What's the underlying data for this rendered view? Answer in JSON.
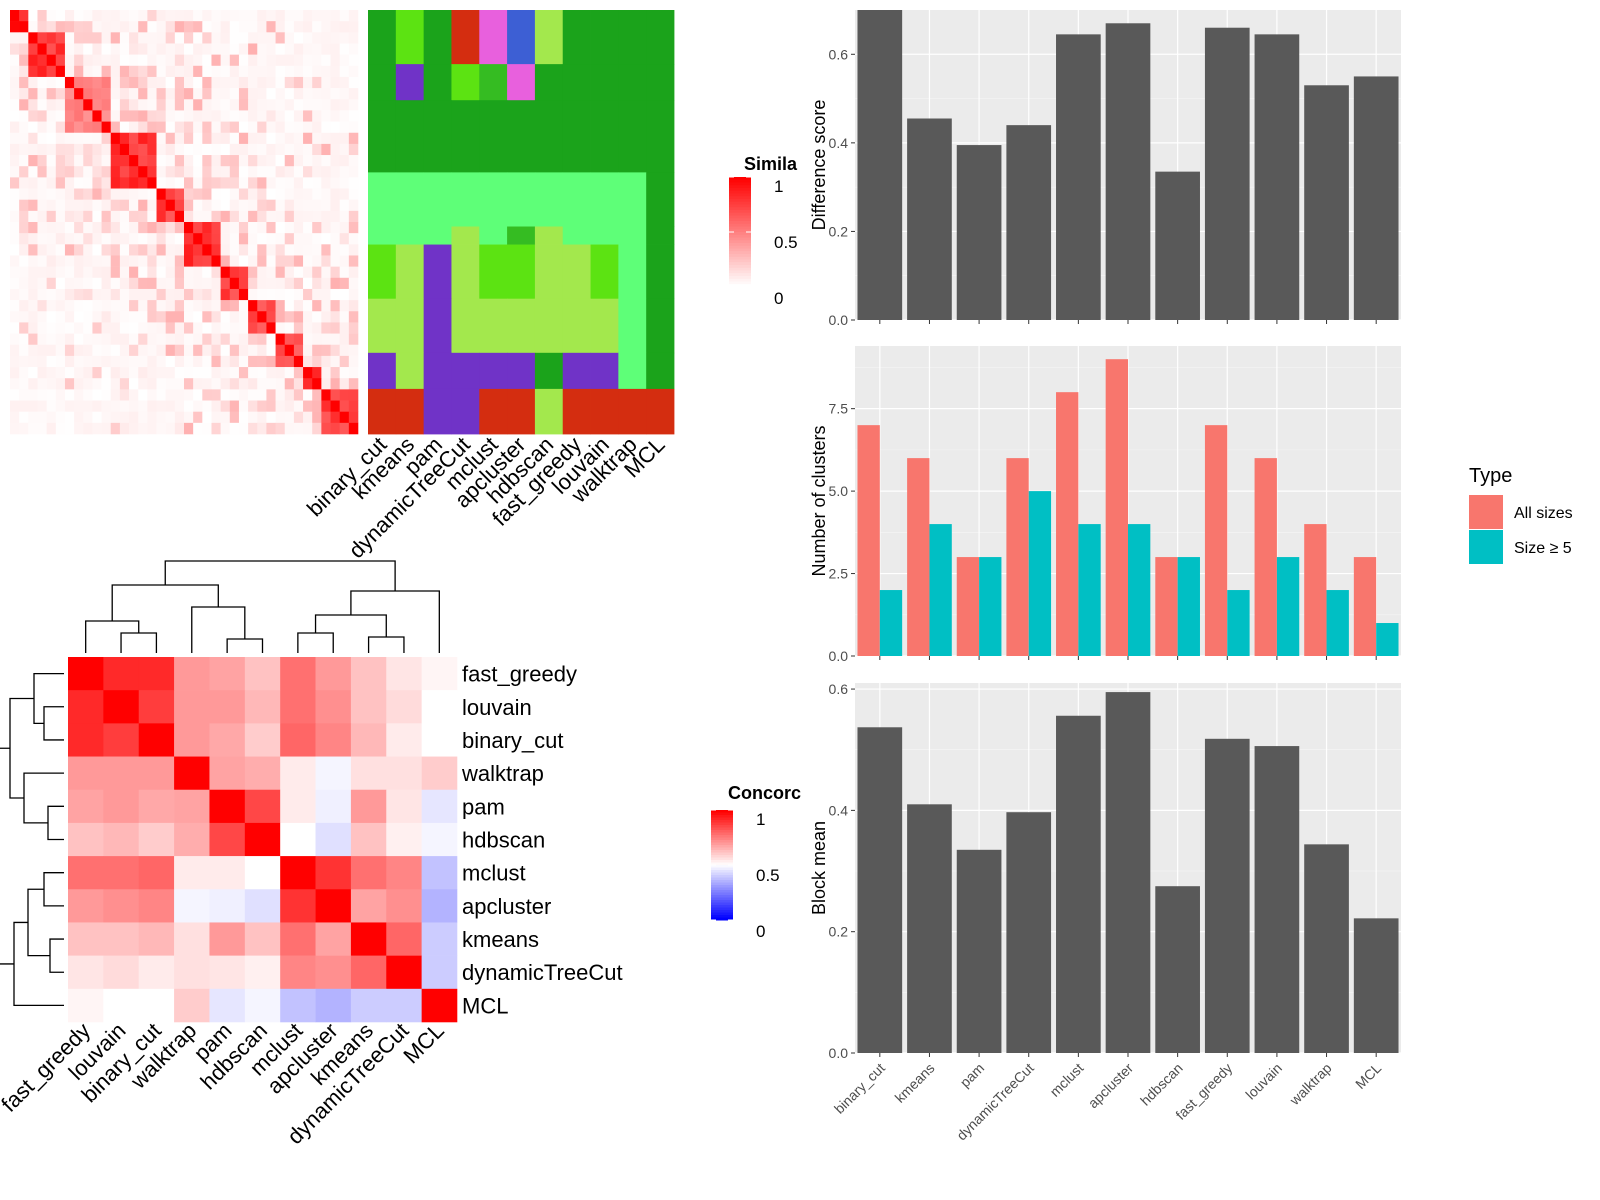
{
  "colors": {
    "bar_dark": "#595959",
    "all_sizes": "#F8766D",
    "size5": "#00BFC4",
    "sim_low": "#ffffff",
    "sim_high": "#ff0000",
    "conc_low": "#0000ff",
    "conc_mid": "#ffffff",
    "conc_high": "#ff0000"
  },
  "similarity_legend": {
    "title": "Simila",
    "ticks": [
      "1",
      "0.5",
      "0"
    ]
  },
  "concordance_legend": {
    "title": "Concorc",
    "ticks": [
      "1",
      "0.5",
      "0"
    ]
  },
  "assignment_columns": [
    "binary_cut",
    "kmeans",
    "pam",
    "dynamicTreeCut",
    "mclust",
    "apcluster",
    "hdbscan",
    "fast_greedy",
    "louvain",
    "walktrap",
    "MCL"
  ],
  "assignment_grid": {
    "palette": [
      "#1ba31b",
      "#5eff78",
      "#5ce312",
      "#a3e84d",
      "#7033c7",
      "#d42d10",
      "#e860dd",
      "#3d5fd4",
      "#35bc22"
    ],
    "rows": [
      [
        0,
        2,
        0,
        5,
        6,
        7,
        3,
        0,
        0,
        0,
        0
      ],
      [
        0,
        4,
        0,
        2,
        8,
        6,
        0,
        0,
        0,
        0,
        0
      ],
      [
        0,
        0,
        0,
        0,
        0,
        0,
        0,
        0,
        0,
        0,
        0
      ],
      [
        1,
        1,
        1,
        1,
        1,
        1,
        1,
        1,
        1,
        1,
        0
      ],
      [
        1,
        1,
        1,
        3,
        1,
        8,
        3,
        1,
        1,
        1,
        0
      ],
      [
        2,
        3,
        4,
        3,
        2,
        2,
        3,
        3,
        2,
        1,
        0
      ],
      [
        3,
        3,
        4,
        3,
        3,
        3,
        3,
        3,
        3,
        1,
        0
      ],
      [
        4,
        3,
        4,
        4,
        4,
        4,
        0,
        4,
        4,
        1,
        0
      ],
      [
        5,
        5,
        4,
        4,
        5,
        5,
        3,
        5,
        5,
        5,
        5
      ]
    ],
    "row_heights": [
      3,
      2,
      4,
      3,
      1,
      3,
      3,
      2,
      2.5
    ]
  },
  "concordance": {
    "methods": [
      "fast_greedy",
      "louvain",
      "binary_cut",
      "walktrap",
      "pam",
      "hdbscan",
      "mclust",
      "apcluster",
      "kmeans",
      "dynamicTreeCut",
      "MCL"
    ],
    "matrix": [
      [
        1.0,
        0.92,
        0.92,
        0.7,
        0.68,
        0.62,
        0.78,
        0.7,
        0.62,
        0.55,
        0.52
      ],
      [
        0.92,
        1.0,
        0.88,
        0.7,
        0.7,
        0.64,
        0.78,
        0.72,
        0.62,
        0.57,
        0.5
      ],
      [
        0.92,
        0.88,
        1.0,
        0.7,
        0.67,
        0.6,
        0.8,
        0.74,
        0.64,
        0.54,
        0.5
      ],
      [
        0.7,
        0.7,
        0.7,
        1.0,
        0.68,
        0.66,
        0.54,
        0.48,
        0.56,
        0.56,
        0.6
      ],
      [
        0.68,
        0.7,
        0.67,
        0.68,
        1.0,
        0.86,
        0.54,
        0.47,
        0.7,
        0.55,
        0.45
      ],
      [
        0.62,
        0.64,
        0.6,
        0.66,
        0.86,
        1.0,
        0.5,
        0.44,
        0.62,
        0.53,
        0.48
      ],
      [
        0.78,
        0.78,
        0.8,
        0.54,
        0.54,
        0.5,
        1.0,
        0.9,
        0.78,
        0.74,
        0.38
      ],
      [
        0.7,
        0.72,
        0.74,
        0.48,
        0.47,
        0.44,
        0.9,
        1.0,
        0.68,
        0.72,
        0.35
      ],
      [
        0.62,
        0.62,
        0.64,
        0.56,
        0.7,
        0.62,
        0.78,
        0.68,
        1.0,
        0.8,
        0.4
      ],
      [
        0.55,
        0.57,
        0.54,
        0.56,
        0.55,
        0.53,
        0.74,
        0.72,
        0.8,
        1.0,
        0.4
      ],
      [
        0.52,
        0.5,
        0.5,
        0.6,
        0.45,
        0.48,
        0.38,
        0.35,
        0.4,
        0.4,
        1.0
      ]
    ]
  },
  "chart_data": [
    {
      "type": "heatmap",
      "name": "similarity-heatmap",
      "title": "",
      "blocks": [
        {
          "size": 2,
          "value": 1.0
        },
        {
          "size": 4,
          "value": 0.9
        },
        {
          "size": 5,
          "value": 0.55
        },
        {
          "size": 5,
          "value": 0.9
        },
        {
          "size": 3,
          "value": 0.85
        },
        {
          "size": 4,
          "value": 0.9
        },
        {
          "size": 3,
          "value": 0.85
        },
        {
          "size": 3,
          "value": 0.8
        },
        {
          "size": 3,
          "value": 0.75
        },
        {
          "size": 2,
          "value": 0.9
        },
        {
          "size": 4,
          "value": 0.85
        }
      ],
      "background": 0.06,
      "value_range": [
        0,
        1
      ]
    },
    {
      "type": "bar",
      "categories": [
        "binary_cut",
        "kmeans",
        "pam",
        "dynamicTreeCut",
        "mclust",
        "apcluster",
        "hdbscan",
        "fast_greedy",
        "louvain",
        "walktrap",
        "MCL"
      ],
      "values": [
        0.7,
        0.455,
        0.395,
        0.44,
        0.645,
        0.67,
        0.335,
        0.66,
        0.645,
        0.53,
        0.55
      ],
      "xlabel": "",
      "ylabel": "Difference score",
      "ylim": [
        0,
        0.7
      ],
      "yticks": [
        "0.0",
        "0.2",
        "0.4",
        "0.6"
      ],
      "grid": true
    },
    {
      "type": "bar",
      "categories": [
        "binary_cut",
        "kmeans",
        "pam",
        "dynamicTreeCut",
        "mclust",
        "apcluster",
        "hdbscan",
        "fast_greedy",
        "louvain",
        "walktrap",
        "MCL"
      ],
      "series": [
        {
          "name": "All sizes",
          "values": [
            7,
            6,
            3,
            6,
            8,
            9,
            3,
            7,
            6,
            4,
            3
          ]
        },
        {
          "name": "Size ≥ 5",
          "values": [
            2,
            4,
            3,
            5,
            4,
            4,
            3,
            2,
            3,
            2,
            1
          ]
        }
      ],
      "xlabel": "",
      "ylabel": "Number of clusters",
      "ylim": [
        0,
        9.4
      ],
      "yticks": [
        "0.0",
        "2.5",
        "5.0",
        "7.5"
      ],
      "legend_title": "Type",
      "legend_position": "right",
      "grid": true
    },
    {
      "type": "bar",
      "categories": [
        "binary_cut",
        "kmeans",
        "pam",
        "dynamicTreeCut",
        "mclust",
        "apcluster",
        "hdbscan",
        "fast_greedy",
        "louvain",
        "walktrap",
        "MCL"
      ],
      "values": [
        0.537,
        0.41,
        0.335,
        0.397,
        0.556,
        0.595,
        0.275,
        0.518,
        0.506,
        0.344,
        0.222
      ],
      "xlabel": "",
      "ylabel": "Block mean",
      "ylim": [
        0,
        0.61
      ],
      "yticks": [
        "0.0",
        "0.2",
        "0.4",
        "0.6"
      ],
      "grid": true
    }
  ]
}
